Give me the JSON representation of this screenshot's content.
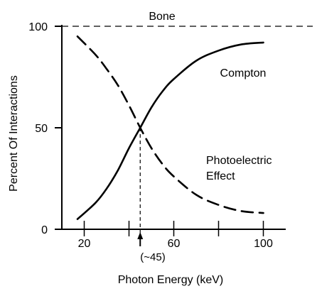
{
  "chart_data": {
    "type": "line",
    "title": "Bone",
    "xlabel": "Photon Energy (keV)",
    "ylabel": "Percent Of Interactions",
    "xlim": [
      10,
      110
    ],
    "ylim": [
      0,
      100
    ],
    "x_ticks": [
      20,
      40,
      60,
      80,
      100
    ],
    "x_tick_labels": [
      "20",
      "",
      "60",
      "",
      "100"
    ],
    "y_ticks": [
      0,
      50,
      100
    ],
    "y_tick_labels": [
      "0",
      "50",
      "100"
    ],
    "grid": false,
    "legend": "none",
    "reference_line": {
      "y": 100,
      "style": "dashed"
    },
    "series": [
      {
        "name": "Compton",
        "style": "solid",
        "color": "#000000",
        "x": [
          17,
          25,
          30,
          35,
          40,
          45,
          50,
          55,
          60,
          70,
          80,
          90,
          100
        ],
        "y": [
          5,
          13,
          20,
          29,
          40,
          50,
          60,
          68,
          74,
          83,
          88,
          91,
          92
        ]
      },
      {
        "name": "Photoelectric Effect",
        "style": "dashed",
        "color": "#000000",
        "x": [
          17,
          25,
          30,
          35,
          40,
          45,
          50,
          55,
          60,
          70,
          80,
          90,
          100
        ],
        "y": [
          95,
          86,
          79,
          71,
          61,
          50,
          40,
          32,
          26,
          17,
          12,
          9,
          8
        ]
      }
    ],
    "annotations": [
      {
        "text": "(~45)",
        "x": 45,
        "y": 50,
        "marker": "arrow-and-dashed-dropline"
      }
    ]
  }
}
